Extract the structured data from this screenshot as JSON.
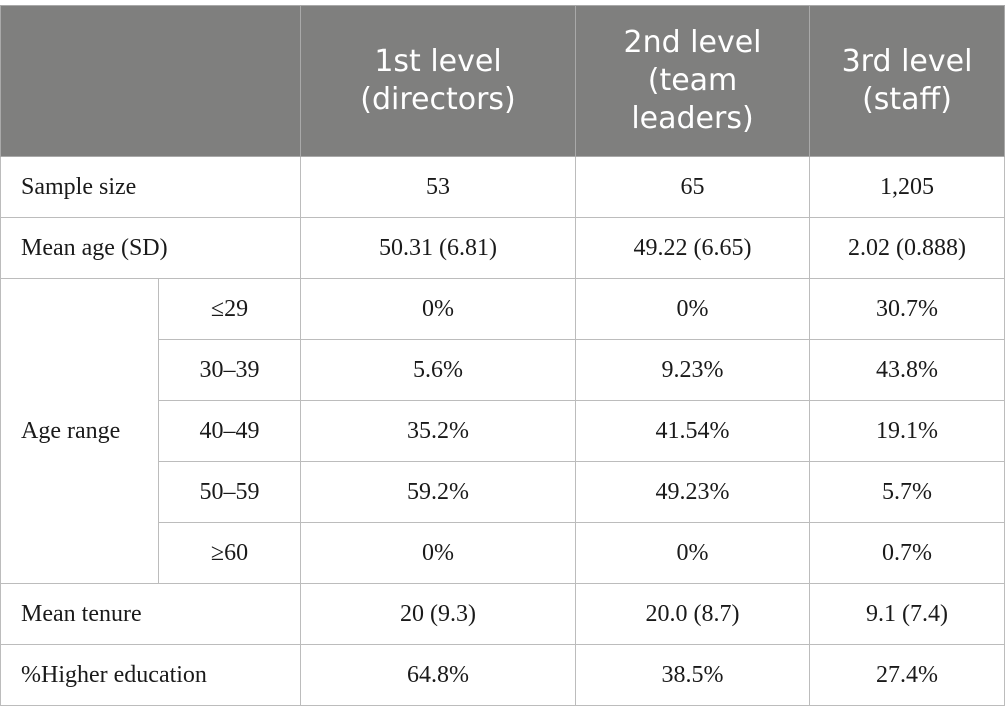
{
  "table": {
    "header": {
      "corner": "",
      "columns": [
        {
          "line1": "1st level",
          "line2": "(directors)",
          "line3": ""
        },
        {
          "line1": "2nd level",
          "line2": "(team",
          "line3": "leaders)"
        },
        {
          "line1": "3rd level",
          "line2": "(staff)",
          "line3": ""
        }
      ]
    },
    "rows": {
      "sample_size": {
        "label": "Sample size",
        "values": [
          "53",
          "65",
          "1,205"
        ]
      },
      "mean_age": {
        "label": "Mean age (SD)",
        "values": [
          "50.31 (6.81)",
          "49.22 (6.65)",
          "2.02 (0.888)"
        ]
      },
      "age_range": {
        "label": "Age range",
        "bands": [
          {
            "label": "≤29",
            "values": [
              "0%",
              "0%",
              "30.7%"
            ]
          },
          {
            "label": "30–39",
            "values": [
              "5.6%",
              "9.23%",
              "43.8%"
            ]
          },
          {
            "label": "40–49",
            "values": [
              "35.2%",
              "41.54%",
              "19.1%"
            ]
          },
          {
            "label": "50–59",
            "values": [
              "59.2%",
              "49.23%",
              "5.7%"
            ]
          },
          {
            "label": "≥60",
            "values": [
              "0%",
              "0%",
              "0.7%"
            ]
          }
        ]
      },
      "mean_tenure": {
        "label": "Mean tenure",
        "values": [
          "20 (9.3)",
          "20.0 (8.7)",
          "9.1 (7.4)"
        ]
      },
      "higher_education": {
        "label": "%Higher education",
        "values": [
          "64.8%",
          "38.5%",
          "27.4%"
        ]
      }
    },
    "colors": {
      "header_background": "#7f7f7e",
      "header_text": "#ffffff",
      "border": "#bcbcbc"
    }
  }
}
